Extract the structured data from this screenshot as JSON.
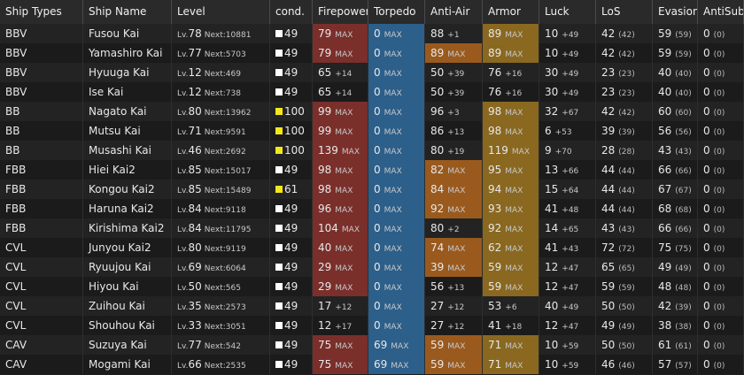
{
  "columns": [
    "Ship Types",
    "Ship Name",
    "Level",
    "cond.",
    "Firepower",
    "Torpedo",
    "Anti-Air",
    "Armor",
    "Luck",
    "LoS",
    "Evasion",
    "AntiSub"
  ],
  "colors": {
    "firepower": "#7a2f2b",
    "torpedo": "#2c5f8a",
    "antiair": "#9a5a1e",
    "armor": "#8a6820",
    "cond_normal": "#ffffff",
    "cond_sparkle": "#f4e81a"
  },
  "rows": [
    {
      "type": "BBV",
      "name": "Fusou Kai",
      "lv": "78",
      "next": "10881",
      "cond": "49",
      "sparkle": false,
      "fp": "79",
      "fp_s": "MAX",
      "fp_hl": true,
      "tp": "0",
      "tp_s": "MAX",
      "tp_hl": true,
      "aa": "88",
      "aa_s": "+1",
      "aa_hl": false,
      "ar": "89",
      "ar_s": "MAX",
      "ar_hl": true,
      "luck": "10",
      "luck_s": "+49",
      "los": "42",
      "los_s": "(42)",
      "ev": "59",
      "ev_s": "(59)",
      "as": "0",
      "as_s": "(0)"
    },
    {
      "type": "BBV",
      "name": "Yamashiro Kai",
      "lv": "77",
      "next": "5703",
      "cond": "49",
      "sparkle": false,
      "fp": "79",
      "fp_s": "MAX",
      "fp_hl": true,
      "tp": "0",
      "tp_s": "MAX",
      "tp_hl": true,
      "aa": "89",
      "aa_s": "MAX",
      "aa_hl": true,
      "ar": "89",
      "ar_s": "MAX",
      "ar_hl": true,
      "luck": "10",
      "luck_s": "+49",
      "los": "42",
      "los_s": "(42)",
      "ev": "59",
      "ev_s": "(59)",
      "as": "0",
      "as_s": "(0)"
    },
    {
      "type": "BBV",
      "name": "Hyuuga Kai",
      "lv": "12",
      "next": "469",
      "cond": "49",
      "sparkle": false,
      "fp": "65",
      "fp_s": "+14",
      "fp_hl": false,
      "tp": "0",
      "tp_s": "MAX",
      "tp_hl": true,
      "aa": "50",
      "aa_s": "+39",
      "aa_hl": false,
      "ar": "76",
      "ar_s": "+16",
      "ar_hl": false,
      "luck": "30",
      "luck_s": "+49",
      "los": "23",
      "los_s": "(23)",
      "ev": "40",
      "ev_s": "(40)",
      "as": "0",
      "as_s": "(0)"
    },
    {
      "type": "BBV",
      "name": "Ise Kai",
      "lv": "12",
      "next": "738",
      "cond": "49",
      "sparkle": false,
      "fp": "65",
      "fp_s": "+14",
      "fp_hl": false,
      "tp": "0",
      "tp_s": "MAX",
      "tp_hl": true,
      "aa": "50",
      "aa_s": "+39",
      "aa_hl": false,
      "ar": "76",
      "ar_s": "+16",
      "ar_hl": false,
      "luck": "30",
      "luck_s": "+49",
      "los": "23",
      "los_s": "(23)",
      "ev": "40",
      "ev_s": "(40)",
      "as": "0",
      "as_s": "(0)"
    },
    {
      "type": "BB",
      "name": "Nagato Kai",
      "lv": "80",
      "next": "13962",
      "cond": "100",
      "sparkle": true,
      "fp": "99",
      "fp_s": "MAX",
      "fp_hl": true,
      "tp": "0",
      "tp_s": "MAX",
      "tp_hl": true,
      "aa": "96",
      "aa_s": "+3",
      "aa_hl": false,
      "ar": "98",
      "ar_s": "MAX",
      "ar_hl": true,
      "luck": "32",
      "luck_s": "+67",
      "los": "42",
      "los_s": "(42)",
      "ev": "60",
      "ev_s": "(60)",
      "as": "0",
      "as_s": "(0)"
    },
    {
      "type": "BB",
      "name": "Mutsu Kai",
      "lv": "71",
      "next": "9591",
      "cond": "100",
      "sparkle": true,
      "fp": "99",
      "fp_s": "MAX",
      "fp_hl": true,
      "tp": "0",
      "tp_s": "MAX",
      "tp_hl": true,
      "aa": "86",
      "aa_s": "+13",
      "aa_hl": false,
      "ar": "98",
      "ar_s": "MAX",
      "ar_hl": true,
      "luck": "6",
      "luck_s": "+53",
      "los": "39",
      "los_s": "(39)",
      "ev": "56",
      "ev_s": "(56)",
      "as": "0",
      "as_s": "(0)"
    },
    {
      "type": "BB",
      "name": "Musashi Kai",
      "lv": "46",
      "next": "2692",
      "cond": "100",
      "sparkle": true,
      "fp": "139",
      "fp_s": "MAX",
      "fp_hl": true,
      "tp": "0",
      "tp_s": "MAX",
      "tp_hl": true,
      "aa": "80",
      "aa_s": "+19",
      "aa_hl": false,
      "ar": "119",
      "ar_s": "MAX",
      "ar_hl": true,
      "luck": "9",
      "luck_s": "+70",
      "los": "28",
      "los_s": "(28)",
      "ev": "43",
      "ev_s": "(43)",
      "as": "0",
      "as_s": "(0)"
    },
    {
      "type": "FBB",
      "name": "Hiei Kai2",
      "lv": "85",
      "next": "15017",
      "cond": "49",
      "sparkle": false,
      "fp": "98",
      "fp_s": "MAX",
      "fp_hl": true,
      "tp": "0",
      "tp_s": "MAX",
      "tp_hl": true,
      "aa": "82",
      "aa_s": "MAX",
      "aa_hl": true,
      "ar": "95",
      "ar_s": "MAX",
      "ar_hl": true,
      "luck": "13",
      "luck_s": "+66",
      "los": "44",
      "los_s": "(44)",
      "ev": "66",
      "ev_s": "(66)",
      "as": "0",
      "as_s": "(0)"
    },
    {
      "type": "FBB",
      "name": "Kongou Kai2",
      "lv": "85",
      "next": "15489",
      "cond": "61",
      "sparkle": true,
      "fp": "98",
      "fp_s": "MAX",
      "fp_hl": true,
      "tp": "0",
      "tp_s": "MAX",
      "tp_hl": true,
      "aa": "84",
      "aa_s": "MAX",
      "aa_hl": true,
      "ar": "94",
      "ar_s": "MAX",
      "ar_hl": true,
      "luck": "15",
      "luck_s": "+64",
      "los": "44",
      "los_s": "(44)",
      "ev": "67",
      "ev_s": "(67)",
      "as": "0",
      "as_s": "(0)"
    },
    {
      "type": "FBB",
      "name": "Haruna Kai2",
      "lv": "84",
      "next": "9118",
      "cond": "49",
      "sparkle": false,
      "fp": "96",
      "fp_s": "MAX",
      "fp_hl": true,
      "tp": "0",
      "tp_s": "MAX",
      "tp_hl": true,
      "aa": "92",
      "aa_s": "MAX",
      "aa_hl": true,
      "ar": "93",
      "ar_s": "MAX",
      "ar_hl": true,
      "luck": "41",
      "luck_s": "+48",
      "los": "44",
      "los_s": "(44)",
      "ev": "68",
      "ev_s": "(68)",
      "as": "0",
      "as_s": "(0)"
    },
    {
      "type": "FBB",
      "name": "Kirishima Kai2",
      "lv": "84",
      "next": "11795",
      "cond": "49",
      "sparkle": false,
      "fp": "104",
      "fp_s": "MAX",
      "fp_hl": true,
      "tp": "0",
      "tp_s": "MAX",
      "tp_hl": true,
      "aa": "80",
      "aa_s": "+2",
      "aa_hl": false,
      "ar": "92",
      "ar_s": "MAX",
      "ar_hl": true,
      "luck": "14",
      "luck_s": "+65",
      "los": "43",
      "los_s": "(43)",
      "ev": "66",
      "ev_s": "(66)",
      "as": "0",
      "as_s": "(0)"
    },
    {
      "type": "CVL",
      "name": "Junyou Kai2",
      "lv": "80",
      "next": "9119",
      "cond": "49",
      "sparkle": false,
      "fp": "40",
      "fp_s": "MAX",
      "fp_hl": true,
      "tp": "0",
      "tp_s": "MAX",
      "tp_hl": true,
      "aa": "74",
      "aa_s": "MAX",
      "aa_hl": true,
      "ar": "62",
      "ar_s": "MAX",
      "ar_hl": true,
      "luck": "41",
      "luck_s": "+43",
      "los": "72",
      "los_s": "(72)",
      "ev": "75",
      "ev_s": "(75)",
      "as": "0",
      "as_s": "(0)"
    },
    {
      "type": "CVL",
      "name": "Ryuujou Kai",
      "lv": "69",
      "next": "6064",
      "cond": "49",
      "sparkle": false,
      "fp": "29",
      "fp_s": "MAX",
      "fp_hl": true,
      "tp": "0",
      "tp_s": "MAX",
      "tp_hl": true,
      "aa": "39",
      "aa_s": "MAX",
      "aa_hl": true,
      "ar": "59",
      "ar_s": "MAX",
      "ar_hl": true,
      "luck": "12",
      "luck_s": "+47",
      "los": "65",
      "los_s": "(65)",
      "ev": "49",
      "ev_s": "(49)",
      "as": "0",
      "as_s": "(0)"
    },
    {
      "type": "CVL",
      "name": "Hiyou Kai",
      "lv": "50",
      "next": "565",
      "cond": "49",
      "sparkle": false,
      "fp": "29",
      "fp_s": "MAX",
      "fp_hl": true,
      "tp": "0",
      "tp_s": "MAX",
      "tp_hl": true,
      "aa": "56",
      "aa_s": "+13",
      "aa_hl": false,
      "ar": "59",
      "ar_s": "MAX",
      "ar_hl": true,
      "luck": "12",
      "luck_s": "+47",
      "los": "59",
      "los_s": "(59)",
      "ev": "48",
      "ev_s": "(48)",
      "as": "0",
      "as_s": "(0)"
    },
    {
      "type": "CVL",
      "name": "Zuihou Kai",
      "lv": "35",
      "next": "2573",
      "cond": "49",
      "sparkle": false,
      "fp": "17",
      "fp_s": "+12",
      "fp_hl": false,
      "tp": "0",
      "tp_s": "MAX",
      "tp_hl": true,
      "aa": "27",
      "aa_s": "+12",
      "aa_hl": false,
      "ar": "53",
      "ar_s": "+6",
      "ar_hl": false,
      "luck": "40",
      "luck_s": "+49",
      "los": "50",
      "los_s": "(50)",
      "ev": "42",
      "ev_s": "(39)",
      "as": "0",
      "as_s": "(0)"
    },
    {
      "type": "CVL",
      "name": "Shouhou Kai",
      "lv": "33",
      "next": "3051",
      "cond": "49",
      "sparkle": false,
      "fp": "12",
      "fp_s": "+17",
      "fp_hl": false,
      "tp": "0",
      "tp_s": "MAX",
      "tp_hl": true,
      "aa": "27",
      "aa_s": "+12",
      "aa_hl": false,
      "ar": "41",
      "ar_s": "+18",
      "ar_hl": false,
      "luck": "12",
      "luck_s": "+47",
      "los": "49",
      "los_s": "(49)",
      "ev": "38",
      "ev_s": "(38)",
      "as": "0",
      "as_s": "(0)"
    },
    {
      "type": "CAV",
      "name": "Suzuya Kai",
      "lv": "77",
      "next": "542",
      "cond": "49",
      "sparkle": false,
      "fp": "75",
      "fp_s": "MAX",
      "fp_hl": true,
      "tp": "69",
      "tp_s": "MAX",
      "tp_hl": true,
      "aa": "59",
      "aa_s": "MAX",
      "aa_hl": true,
      "ar": "71",
      "ar_s": "MAX",
      "ar_hl": true,
      "luck": "10",
      "luck_s": "+59",
      "los": "50",
      "los_s": "(50)",
      "ev": "61",
      "ev_s": "(61)",
      "as": "0",
      "as_s": "(0)"
    },
    {
      "type": "CAV",
      "name": "Mogami Kai",
      "lv": "66",
      "next": "2535",
      "cond": "49",
      "sparkle": false,
      "fp": "75",
      "fp_s": "MAX",
      "fp_hl": true,
      "tp": "69",
      "tp_s": "MAX",
      "tp_hl": true,
      "aa": "59",
      "aa_s": "MAX",
      "aa_hl": true,
      "ar": "71",
      "ar_s": "MAX",
      "ar_hl": true,
      "luck": "10",
      "luck_s": "+59",
      "los": "46",
      "los_s": "(46)",
      "ev": "57",
      "ev_s": "(57)",
      "as": "0",
      "as_s": "(0)"
    }
  ],
  "labels": {
    "lv": "Lv.",
    "next": "Next:"
  }
}
